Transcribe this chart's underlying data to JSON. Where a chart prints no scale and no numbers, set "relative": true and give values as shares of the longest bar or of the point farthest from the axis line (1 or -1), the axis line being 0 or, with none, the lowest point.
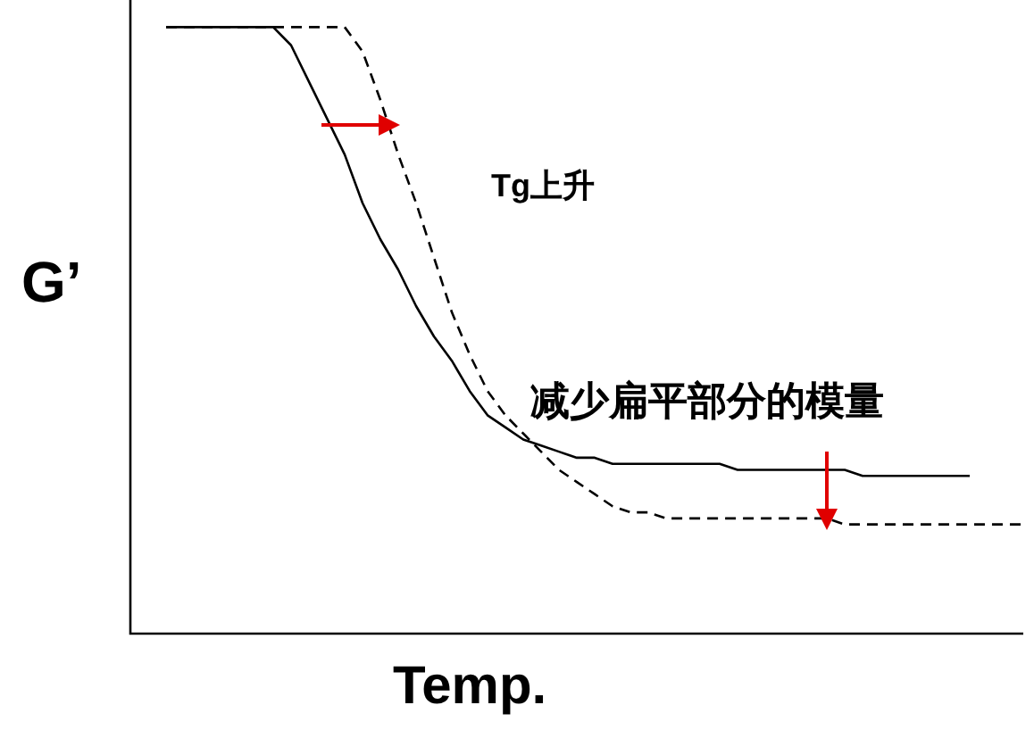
{
  "chart_data": {
    "type": "line",
    "relative": true,
    "xlabel": "Temp.",
    "ylabel": "G’",
    "annotations": [
      "Tg上升",
      "减少扁平部分的模量"
    ],
    "categories": [
      null,
      null,
      null,
      null,
      null,
      null,
      null,
      null,
      null,
      null,
      null,
      null,
      null,
      null,
      null,
      null,
      null,
      null,
      null,
      null,
      null,
      null,
      null,
      null,
      null,
      null,
      null,
      null,
      null,
      null,
      null,
      null,
      null,
      null,
      null,
      null,
      null,
      null,
      null,
      null,
      null,
      null,
      null,
      null,
      null,
      null,
      null,
      null,
      null,
      null,
      null
    ],
    "series": [
      {
        "color": "#000000",
        "line_style": "solid",
        "values": [
          null,
          null,
          1,
          1,
          1,
          1,
          1,
          1,
          1,
          0.97,
          0.91,
          0.85,
          0.79,
          0.71,
          0.65,
          0.6,
          0.54,
          0.49,
          0.45,
          0.4,
          0.36,
          0.34,
          0.32,
          0.31,
          0.3,
          0.29,
          0.29,
          0.28,
          0.28,
          0.28,
          0.28,
          0.28,
          0.28,
          0.28,
          0.27,
          0.27,
          0.27,
          0.27,
          0.27,
          0.27,
          0.27,
          0.26,
          0.26,
          0.26,
          0.26,
          0.26,
          0.26,
          0.26,
          null,
          null,
          null
        ]
      },
      {
        "color": "#000000",
        "line_style": "dashed",
        "values": [
          null,
          null,
          1,
          1,
          1,
          1,
          1,
          1,
          1,
          1,
          1,
          1,
          1,
          0.96,
          0.88,
          0.79,
          0.71,
          0.62,
          0.53,
          0.46,
          0.4,
          0.36,
          0.33,
          0.3,
          0.27,
          0.25,
          0.23,
          0.21,
          0.2,
          0.2,
          0.19,
          0.19,
          0.19,
          0.19,
          0.19,
          0.19,
          0.19,
          0.19,
          0.19,
          0.19,
          0.18,
          0.18,
          0.18,
          0.18,
          0.18,
          0.18,
          0.18,
          0.18,
          0.18,
          0.18,
          0.18
        ]
      }
    ],
    "legend": false,
    "marker": "none"
  }
}
